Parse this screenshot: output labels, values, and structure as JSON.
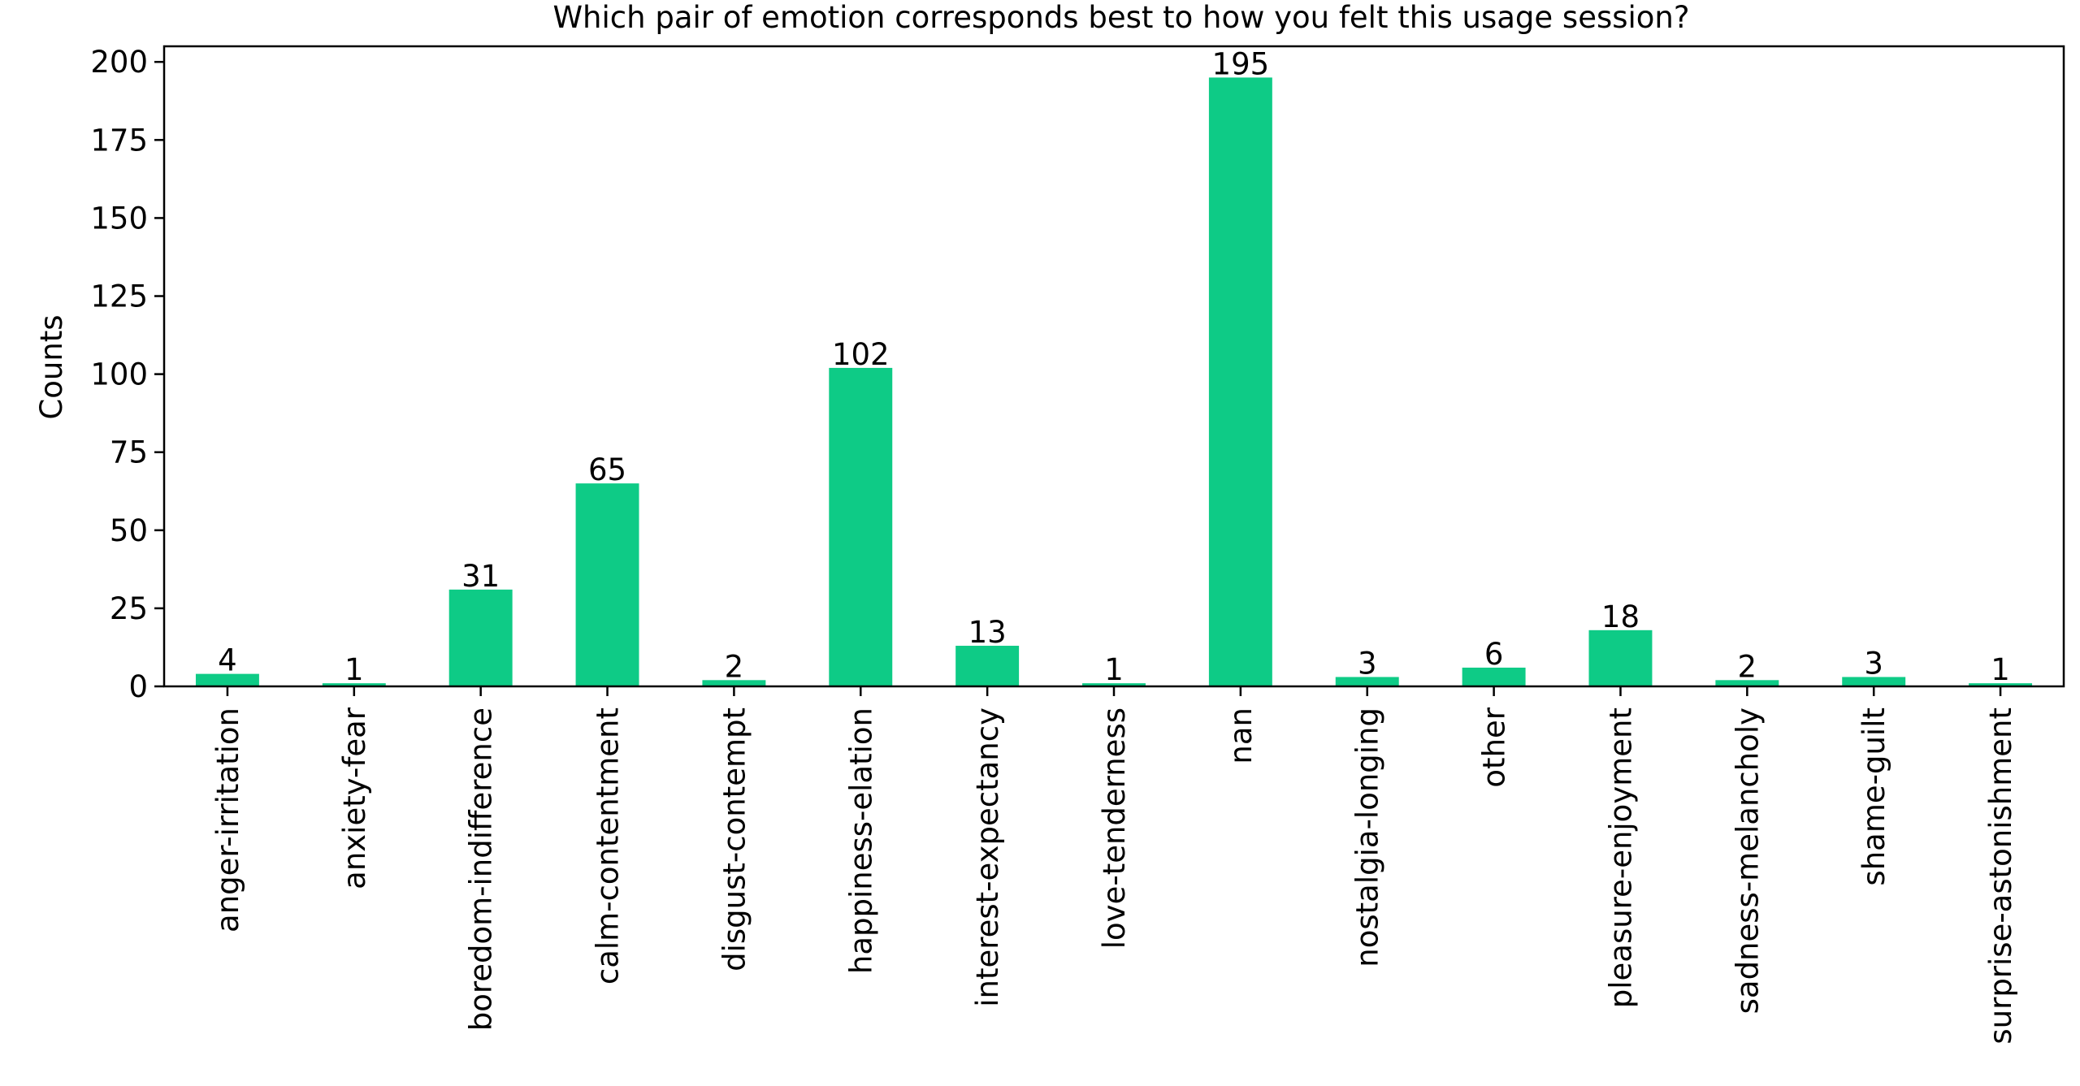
{
  "chart_data": {
    "type": "bar",
    "title": "Which pair of emotion corresponds best to how you felt this usage session?",
    "xlabel": "",
    "ylabel": "Counts",
    "ylim": [
      0,
      205
    ],
    "yticks": [
      0,
      25,
      50,
      75,
      100,
      125,
      150,
      175,
      200
    ],
    "grid": false,
    "legend": "none",
    "bar_color": "#0ecb86",
    "categories": [
      "anger-irritation",
      "anxiety-fear",
      "boredom-indifference",
      "calm-contentment",
      "disgust-contempt",
      "happiness-elation",
      "interest-expectancy",
      "love-tenderness",
      "nan",
      "nostalgia-longing",
      "other",
      "pleasure-enjoyment",
      "sadness-melancholy",
      "shame-guilt",
      "surprise-astonishment"
    ],
    "values": [
      4,
      1,
      31,
      65,
      2,
      102,
      13,
      1,
      195,
      3,
      6,
      18,
      2,
      3,
      1
    ],
    "data_labels": [
      "4",
      "1",
      "31",
      "65",
      "2",
      "102",
      "13",
      "1",
      "195",
      "3",
      "6",
      "18",
      "2",
      "3",
      "1"
    ]
  }
}
